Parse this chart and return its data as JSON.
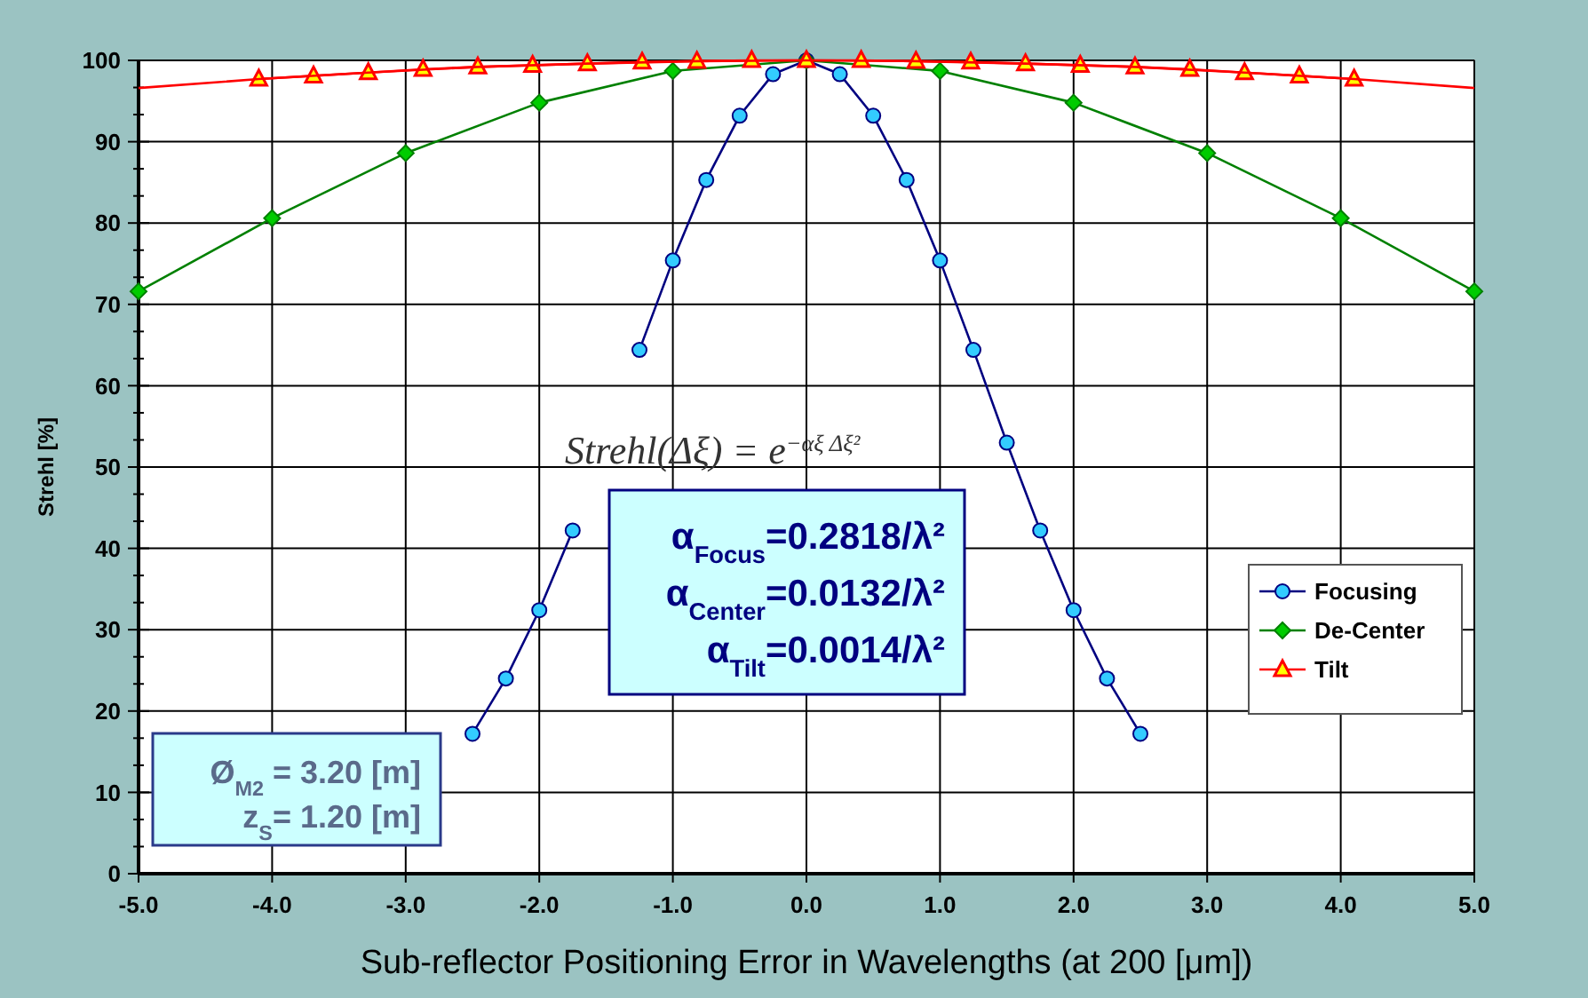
{
  "chart_data": {
    "type": "line",
    "xlabel": "Sub-reflector Positioning Error in Wavelengths (at 200 [μm])",
    "ylabel": "Strehl [%]",
    "xlim": [
      -5,
      5
    ],
    "xticks": [
      {
        "value": -5,
        "label": "-5.0"
      },
      {
        "value": -4,
        "label": "-4.0"
      },
      {
        "value": -3,
        "label": "-3.0"
      },
      {
        "value": -2,
        "label": "-2.0"
      },
      {
        "value": -1,
        "label": "-1.0"
      },
      {
        "value": 0,
        "label": "0.0"
      },
      {
        "value": 1,
        "label": "1.0"
      },
      {
        "value": 2,
        "label": "2.0"
      },
      {
        "value": 3,
        "label": "3.0"
      },
      {
        "value": 4,
        "label": "4.0"
      },
      {
        "value": 5,
        "label": "5.0"
      }
    ],
    "ylim": [
      0,
      100
    ],
    "yticks": [
      0,
      10,
      20,
      30,
      40,
      50,
      60,
      70,
      80,
      90,
      100
    ],
    "grid": true,
    "legend": "right",
    "series": [
      {
        "name": "Focusing",
        "color": "#000080",
        "marker": "circle",
        "x": [
          -2.5,
          -2.25,
          -2,
          -1.75,
          -1.5,
          -1.25,
          -1,
          -0.75,
          -0.5,
          -0.25,
          0,
          0.25,
          0.5,
          0.75,
          1,
          1.25,
          1.5,
          1.75,
          2,
          2.25,
          2.5
        ],
        "values": [
          17.2,
          24,
          32.4,
          42.2,
          null,
          64.4,
          75.4,
          85.3,
          93.2,
          98.3,
          100,
          98.3,
          93.2,
          85.3,
          75.4,
          64.4,
          53,
          42.2,
          32.4,
          24,
          17.2
        ]
      },
      {
        "name": "De-Center",
        "color": "#008000",
        "marker": "diamond",
        "x": [
          -5,
          -4,
          -3,
          -2,
          -1,
          0,
          1,
          2,
          3,
          4,
          5
        ],
        "values": [
          71.6,
          80.6,
          88.6,
          94.8,
          98.7,
          100,
          98.7,
          94.8,
          88.6,
          80.6,
          71.6
        ]
      },
      {
        "name": "Tilt",
        "color": "#ff0000",
        "marker": "triangle",
        "x": [
          -4.1,
          -3.69,
          -3.28,
          -2.87,
          -2.46,
          -2.05,
          -1.64,
          -1.23,
          -0.82,
          -0.41,
          0,
          0.41,
          0.82,
          1.23,
          1.64,
          2.05,
          2.46,
          2.87,
          3.28,
          3.69,
          4.1
        ],
        "values": [
          97.7,
          98.1,
          98.5,
          98.9,
          99.2,
          99.4,
          99.6,
          99.8,
          99.9,
          100,
          100,
          100,
          99.9,
          99.8,
          99.6,
          99.4,
          99.2,
          98.9,
          98.5,
          98.1,
          97.7
        ]
      },
      {
        "color": "#ff0000",
        "marker": "none",
        "x": [
          -5,
          -4.1,
          -3.28,
          -2.46,
          -1.64,
          -0.82,
          0,
          0.82,
          1.64,
          2.46,
          3.28,
          4.1,
          5
        ],
        "values": [
          96.6,
          97.7,
          98.5,
          99.2,
          99.6,
          99.9,
          100,
          99.9,
          99.6,
          99.2,
          98.5,
          97.7,
          96.6
        ]
      }
    ],
    "annotations": [
      "Strehl(Δξ)  =  e$^{−αξ Δξ²}$",
      "α$_{Focus}$=0.2818/λ²",
      "α$_{Center}$=0.0132/λ²",
      "α$_{Tilt}$=0.0014/λ²",
      "Ø$_{M2}$ = 3.20 [m]",
      "z$_{S}$= 1.20 [m]"
    ]
  }
}
